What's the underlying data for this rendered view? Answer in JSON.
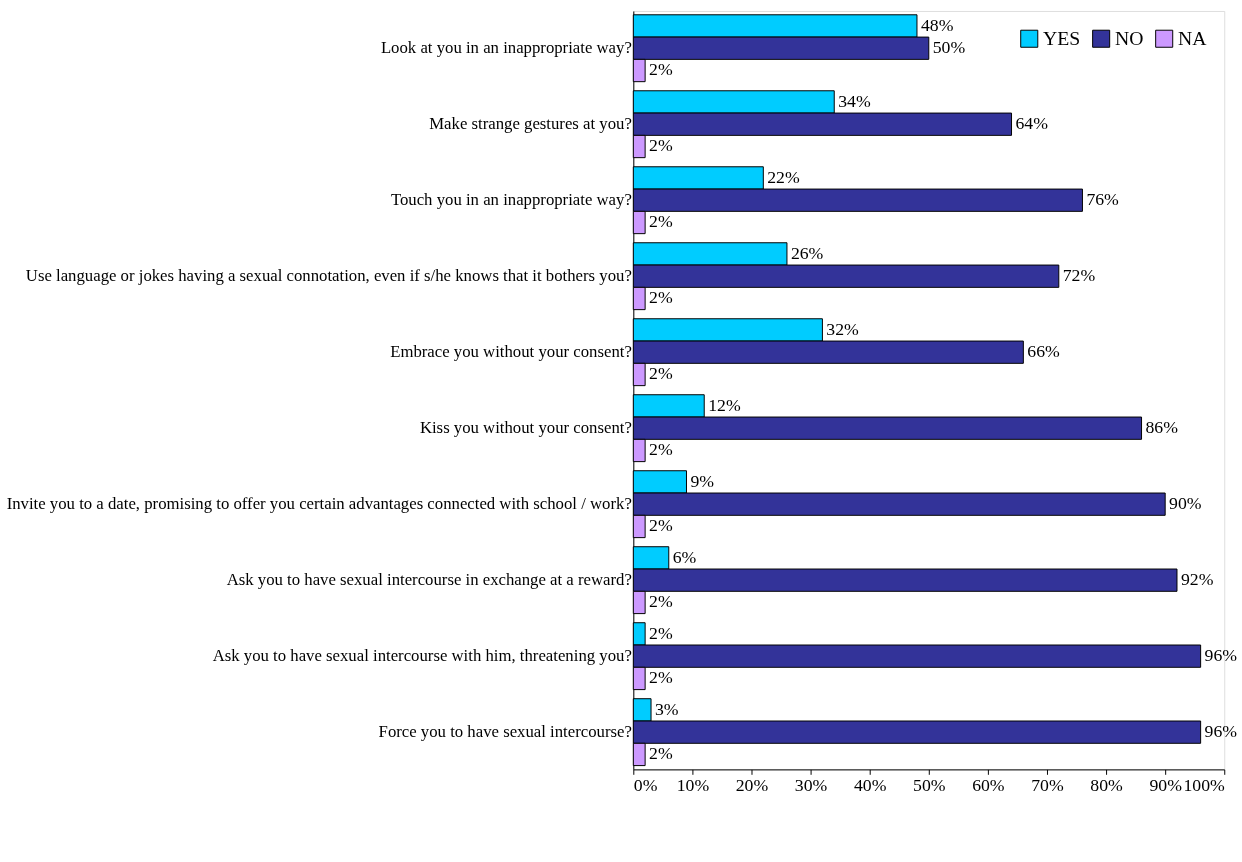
{
  "chart_data": {
    "type": "bar",
    "orientation": "horizontal",
    "categories": [
      "Look at you in an inappropriate way?",
      "Make strange gestures at you?",
      "Touch you in an inappropriate way?",
      "Use language or jokes having a sexual connotation, even if s/he knows that it bothers you?",
      "Embrace you without your consent?",
      "Kiss you without your consent?",
      "Invite you to a date, promising to offer you certain advantages connected with school / work?",
      "Ask you to have sexual intercourse in exchange at a reward?",
      "Ask you to have sexual intercourse with him, threatening you?",
      "Force you to have sexual intercourse?"
    ],
    "series": [
      {
        "name": "YES",
        "color": "#00ccff",
        "values": [
          48,
          34,
          22,
          26,
          32,
          12,
          9,
          6,
          2,
          3
        ],
        "value_labels": [
          "48%",
          "34%",
          "22%",
          "26%",
          "32%",
          "12%",
          "9%",
          "6%",
          "2%",
          "3%"
        ]
      },
      {
        "name": "NO",
        "color": "#333399",
        "values": [
          50,
          64,
          76,
          72,
          66,
          86,
          90,
          92,
          96,
          96
        ],
        "value_labels": [
          "50%",
          "64%",
          "76%",
          "72%",
          "66%",
          "86%",
          "90%",
          "92%",
          "96%",
          "96%"
        ]
      },
      {
        "name": "NA",
        "color": "#cc99ff",
        "values": [
          2,
          2,
          2,
          2,
          2,
          2,
          2,
          2,
          2,
          2
        ],
        "value_labels": [
          "2%",
          "2%",
          "2%",
          "2%",
          "2%",
          "2%",
          "2%",
          "2%",
          "2%",
          "2%"
        ]
      }
    ],
    "xlim": [
      0,
      100
    ],
    "xticks": [
      {
        "value": 0,
        "label": "0%"
      },
      {
        "value": 10,
        "label": "10%"
      },
      {
        "value": 20,
        "label": "20%"
      },
      {
        "value": 30,
        "label": "30%"
      },
      {
        "value": 40,
        "label": "40%"
      },
      {
        "value": 50,
        "label": "50%"
      },
      {
        "value": 60,
        "label": "60%"
      },
      {
        "value": 70,
        "label": "70%"
      },
      {
        "value": 80,
        "label": "80%"
      },
      {
        "value": 90,
        "label": "90%"
      },
      {
        "value": 100,
        "label": "100%"
      }
    ],
    "grid": false,
    "legend": "top right"
  }
}
